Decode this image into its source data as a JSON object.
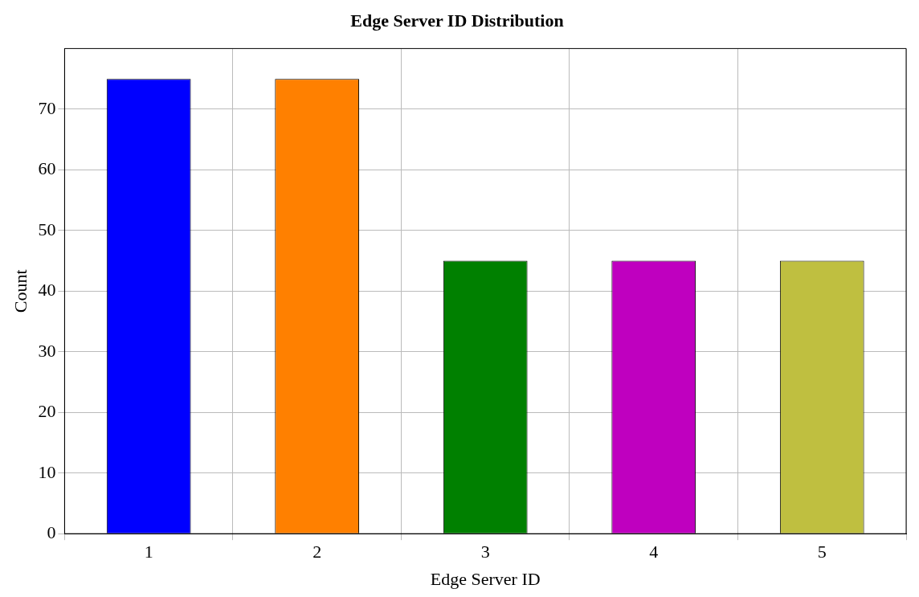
{
  "chart_data": {
    "type": "bar",
    "title": "Edge Server ID Distribution",
    "xlabel": "Edge Server ID",
    "ylabel": "Count",
    "categories": [
      "1",
      "2",
      "3",
      "4",
      "5"
    ],
    "values": [
      75,
      75,
      45,
      45,
      45
    ],
    "colors": [
      "#0000ff",
      "#ff8000",
      "#008000",
      "#bf00bf",
      "#bfbf40"
    ],
    "ylim": [
      0,
      80
    ],
    "yticks": [
      0,
      10,
      20,
      30,
      40,
      50,
      60,
      70
    ],
    "grid": true
  }
}
